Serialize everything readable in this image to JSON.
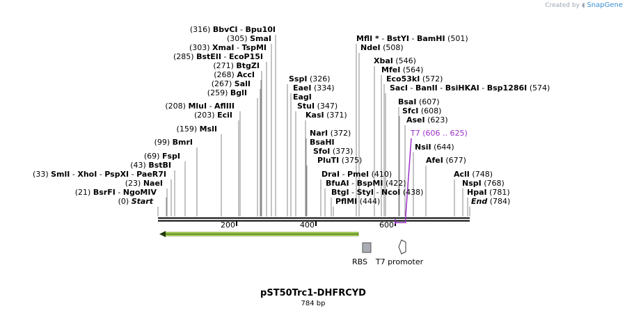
{
  "branding": {
    "created_by": "Created by",
    "app_name": "SnapGene"
  },
  "plasmid": {
    "name": "pST50Trc1-DHFRCYD",
    "length": "784 bp"
  },
  "ruler_ticks": [
    "200",
    "400",
    "600"
  ],
  "features": {
    "rbs": "RBS",
    "t7_promoter": "T7 promoter"
  },
  "sites": [
    {
      "pos": "(316)",
      "names": [
        "BbvCI",
        "Bpu10I"
      ]
    },
    {
      "pos": "(305)",
      "names": [
        "SmaI"
      ]
    },
    {
      "pos": "(303)",
      "names": [
        "XmaI",
        "TspMI"
      ]
    },
    {
      "pos": "(285)",
      "names": [
        "BstEII",
        "EcoP15I"
      ]
    },
    {
      "pos": "(271)",
      "names": [
        "BtgZI"
      ]
    },
    {
      "pos": "(268)",
      "names": [
        "AccI"
      ]
    },
    {
      "pos": "(267)",
      "names": [
        "SalI"
      ]
    },
    {
      "pos": "(259)",
      "names": [
        "BglI"
      ]
    },
    {
      "pos": "(208)",
      "names": [
        "MluI",
        "AflIII"
      ]
    },
    {
      "pos": "(203)",
      "names": [
        "EciI"
      ]
    },
    {
      "pos": "(159)",
      "names": [
        "MslI"
      ]
    },
    {
      "pos": "(99)",
      "names": [
        "BmrI"
      ]
    },
    {
      "pos": "(69)",
      "names": [
        "FspI"
      ]
    },
    {
      "pos": "(43)",
      "names": [
        "BstBI"
      ]
    },
    {
      "pos": "(33)",
      "names": [
        "SmlI",
        "XhoI",
        "PspXI",
        "PaeR7I"
      ]
    },
    {
      "pos": "(23)",
      "names": [
        "NaeI"
      ]
    },
    {
      "pos": "(21)",
      "names": [
        "BsrFI",
        "NgoMIV"
      ]
    },
    {
      "pos": "(0)",
      "names": [
        "Start"
      ]
    },
    {
      "pos": "(326)",
      "names": [
        "SspI"
      ]
    },
    {
      "pos": "(334)",
      "names": [
        "EaeI"
      ]
    },
    {
      "pos": "",
      "names": [
        "EagI"
      ]
    },
    {
      "pos": "(347)",
      "names": [
        "StuI"
      ]
    },
    {
      "pos": "(371)",
      "names": [
        "KasI"
      ]
    },
    {
      "pos": "(372)",
      "names": [
        "NarI"
      ]
    },
    {
      "pos": "",
      "names": [
        "BsaHI"
      ]
    },
    {
      "pos": "(373)",
      "names": [
        "SfoI"
      ]
    },
    {
      "pos": "(375)",
      "names": [
        "PluTI"
      ]
    },
    {
      "pos": "(410)",
      "names": [
        "DraI",
        "PmeI"
      ]
    },
    {
      "pos": "(422)",
      "names": [
        "BfuAI",
        "BspMI"
      ]
    },
    {
      "pos": "(438)",
      "names": [
        "BtgI",
        "StyI",
        "NcoI"
      ]
    },
    {
      "pos": "(444)",
      "names": [
        "PflMI"
      ]
    },
    {
      "pos": "(501)",
      "names": [
        "MflI *",
        "BstYI",
        "BamHI"
      ]
    },
    {
      "pos": "(508)",
      "names": [
        "NdeI"
      ]
    },
    {
      "pos": "(546)",
      "names": [
        "XbaI"
      ]
    },
    {
      "pos": "(564)",
      "names": [
        "MfeI"
      ]
    },
    {
      "pos": "(572)",
      "names": [
        "Eco53kI"
      ]
    },
    {
      "pos": "(574)",
      "names": [
        "SacI",
        "BanII",
        "BsiHKAI",
        "Bsp1286I"
      ]
    },
    {
      "pos": "(607)",
      "names": [
        "BsaI"
      ]
    },
    {
      "pos": "(608)",
      "names": [
        "SfcI"
      ]
    },
    {
      "pos": "(623)",
      "names": [
        "AseI"
      ]
    },
    {
      "pos": "(606 .. 625)",
      "names": [
        "T7"
      ]
    },
    {
      "pos": "(644)",
      "names": [
        "NsiI"
      ]
    },
    {
      "pos": "(677)",
      "names": [
        "AfeI"
      ]
    },
    {
      "pos": "(748)",
      "names": [
        "AclI"
      ]
    },
    {
      "pos": "(768)",
      "names": [
        "NspI"
      ]
    },
    {
      "pos": "(781)",
      "names": [
        "HpaI"
      ]
    },
    {
      "pos": "(784)",
      "names": [
        "End"
      ]
    }
  ]
}
